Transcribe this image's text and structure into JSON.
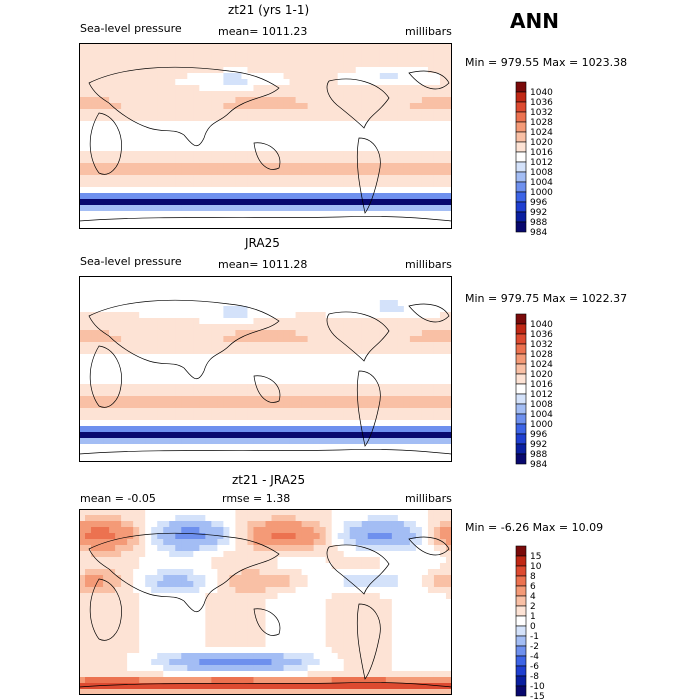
{
  "season": "ANN",
  "units": "millibars",
  "colors": {
    "slp_scale": [
      "#08086e",
      "#0a1fa0",
      "#1f3fd0",
      "#3d64e6",
      "#6e90ee",
      "#a3bdf4",
      "#d4e2fa",
      "#ffffff",
      "#fde3d5",
      "#f9c0a5",
      "#f49a77",
      "#ec7250",
      "#dd4a30",
      "#c02815",
      "#7a0a0a"
    ],
    "diff_scale": [
      "#08086e",
      "#0a1fa0",
      "#1f3fd0",
      "#3d64e6",
      "#6e90ee",
      "#a3bdf4",
      "#d4e2fa",
      "#ffffff",
      "#fde3d5",
      "#f9c0a5",
      "#f49a77",
      "#ec7250",
      "#dd4a30",
      "#c02815",
      "#7a0a0a"
    ]
  },
  "panels": [
    {
      "title": "zt21 (yrs 1-1)",
      "left_label": "Sea-level pressure",
      "mid_label": "mean= 1011.23",
      "units": "millibars",
      "stats": "Min = 979.55 Max = 1023.38",
      "levels": [
        "1040",
        "1036",
        "1032",
        "1028",
        "1024",
        "1020",
        "1016",
        "1012",
        "1008",
        "1004",
        "1000",
        "996",
        "992",
        "988",
        "984"
      ],
      "field": "model"
    },
    {
      "title": "JRA25",
      "left_label": "Sea-level pressure",
      "mid_label": "mean= 1011.28",
      "units": "millibars",
      "stats": "Min = 979.75 Max = 1022.37",
      "levels": [
        "1040",
        "1036",
        "1032",
        "1028",
        "1024",
        "1020",
        "1016",
        "1012",
        "1008",
        "1004",
        "1000",
        "996",
        "992",
        "988",
        "984"
      ],
      "field": "obs"
    },
    {
      "title": "zt21 - JRA25",
      "left_label": "mean =   -0.05",
      "mid_label": "rmse =    1.38",
      "units": "millibars",
      "stats": "Min =  -6.26 Max =   10.09",
      "levels": [
        "15",
        "10",
        "8",
        "6",
        "4",
        "2",
        "1",
        "0",
        "-1",
        "-2",
        "-4",
        "-6",
        "-8",
        "-10",
        "-15"
      ],
      "field": "diff"
    }
  ]
}
